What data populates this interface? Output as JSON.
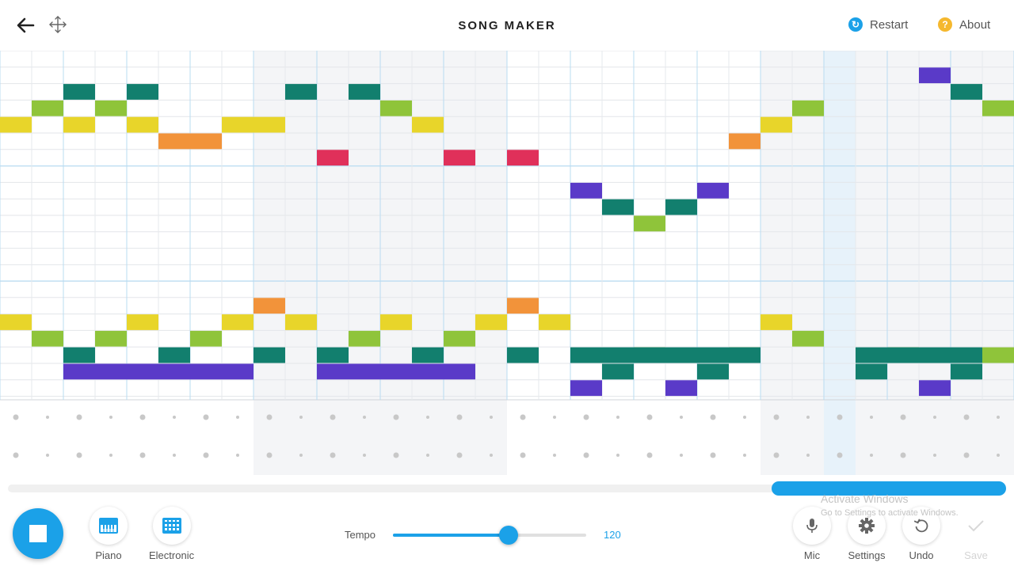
{
  "header": {
    "title": "SONG MAKER",
    "restart_label": "Restart",
    "about_label": "About"
  },
  "colors": {
    "accent": "#1ba1e8",
    "restart_icon": "#1ba1e8",
    "about_icon": "#f5b82e",
    "note_colors": {
      "1": "#e0305a",
      "2": "#f2933a",
      "3": "#e8d52a",
      "4": "#8fc43a",
      "5": "#127f6e",
      "6": "#5a3ac8",
      "7": "#d23a6a"
    }
  },
  "grid": {
    "melody_notes": [
      [
        0,
        4,
        3
      ],
      [
        1,
        3,
        4
      ],
      [
        2,
        2,
        5
      ],
      [
        2,
        4,
        3
      ],
      [
        3,
        3,
        4
      ],
      [
        4,
        2,
        5
      ],
      [
        4,
        4,
        3
      ],
      [
        5,
        5,
        2
      ],
      [
        6,
        5,
        2
      ],
      [
        7,
        4,
        3
      ],
      [
        8,
        4,
        3
      ],
      [
        9,
        2,
        5
      ],
      [
        10,
        6,
        1
      ],
      [
        11,
        2,
        5
      ],
      [
        12,
        3,
        4
      ],
      [
        13,
        4,
        3
      ],
      [
        14,
        6,
        1
      ],
      [
        16,
        6,
        1
      ],
      [
        18,
        8,
        6
      ],
      [
        19,
        9,
        5
      ],
      [
        20,
        10,
        4
      ],
      [
        21,
        9,
        5
      ],
      [
        22,
        8,
        6
      ],
      [
        23,
        5,
        2
      ],
      [
        24,
        4,
        3
      ],
      [
        25,
        3,
        4
      ],
      [
        29,
        1,
        6
      ],
      [
        30,
        2,
        5
      ],
      [
        31,
        3,
        4
      ]
    ],
    "rhythm_notes": [
      [
        0,
        4,
        3
      ],
      [
        1,
        3,
        4
      ],
      [
        2,
        2,
        5
      ],
      [
        3,
        3,
        4
      ],
      [
        4,
        4,
        3
      ],
      [
        5,
        2,
        5
      ],
      [
        6,
        3,
        4
      ],
      [
        7,
        4,
        3
      ],
      [
        8,
        5,
        2
      ],
      [
        9,
        4,
        3
      ],
      [
        10,
        2,
        5
      ],
      [
        11,
        3,
        4
      ],
      [
        12,
        4,
        3
      ],
      [
        13,
        2,
        5
      ],
      [
        14,
        3,
        4
      ],
      [
        15,
        4,
        3
      ],
      [
        16,
        5,
        2
      ],
      [
        17,
        4,
        3
      ],
      [
        18,
        0,
        6
      ],
      [
        19,
        1,
        5
      ],
      [
        20,
        2,
        4
      ],
      [
        21,
        0,
        6
      ],
      [
        22,
        1,
        5
      ],
      [
        23,
        2,
        4
      ],
      [
        24,
        4,
        3
      ],
      [
        25,
        3,
        4
      ],
      [
        27,
        1,
        5
      ],
      [
        28,
        2,
        4
      ],
      [
        29,
        0,
        6
      ],
      [
        30,
        1,
        5
      ],
      [
        31,
        2,
        4
      ]
    ],
    "rhythm_bars": [
      [
        2,
        8,
        6,
        1
      ],
      [
        10,
        15,
        6,
        1
      ],
      [
        18,
        24,
        5,
        2
      ],
      [
        27,
        31,
        5,
        2
      ],
      [
        8,
        9,
        5,
        2
      ],
      [
        16,
        17,
        5,
        2
      ]
    ]
  },
  "scroll": {
    "thumb_start": 0.765,
    "thumb_end": 1.0
  },
  "toolbar": {
    "piano_label": "Piano",
    "electronic_label": "Electronic",
    "tempo_label": "Tempo",
    "tempo_value": "120",
    "tempo_fraction": 0.6,
    "mic_label": "Mic",
    "settings_label": "Settings",
    "undo_label": "Undo",
    "save_label": "Save"
  },
  "watermark": {
    "line1": "Activate Windows",
    "line2": "Go to Settings to activate Windows."
  }
}
